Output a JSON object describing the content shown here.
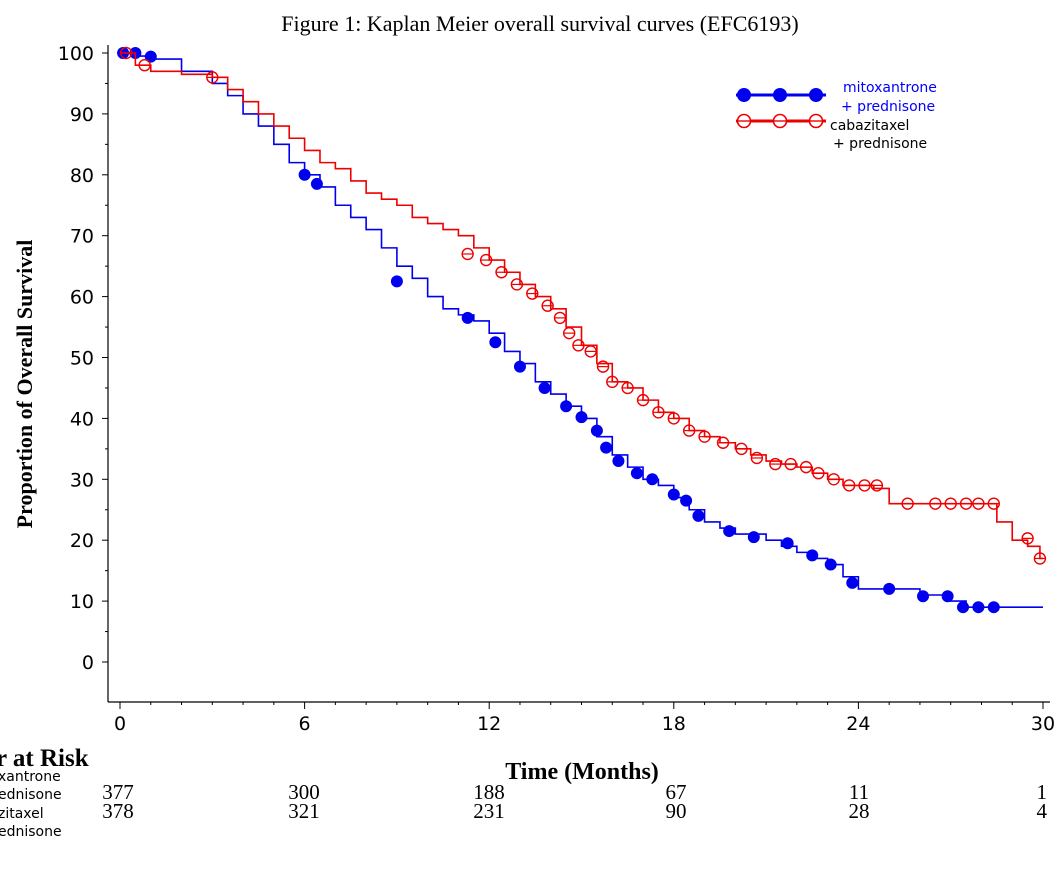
{
  "chart_data": {
    "type": "line",
    "title": "Figure 1: Kaplan Meier overall survival curves (EFC6193)",
    "xlabel": "Time (Months)",
    "ylabel": "Proportion of Overall Survival",
    "xlim": [
      0,
      30
    ],
    "ylim": [
      0,
      100
    ],
    "x_ticks": [
      0,
      6,
      12,
      18,
      24,
      30
    ],
    "y_ticks": [
      0,
      10,
      20,
      30,
      40,
      50,
      60,
      70,
      80,
      90,
      100
    ],
    "grid": false,
    "legend_position": "top-right",
    "series": [
      {
        "name_lines": [
          "mitoxantrone",
          "+ prednisone"
        ],
        "label_color": "#0000ff",
        "color": "#0000ee",
        "marker": "filled-circle",
        "steps": [
          [
            0,
            100
          ],
          [
            0.5,
            99.5
          ],
          [
            1,
            99
          ],
          [
            2,
            97
          ],
          [
            3,
            95
          ],
          [
            3.5,
            93
          ],
          [
            4,
            90
          ],
          [
            4.5,
            88
          ],
          [
            5,
            85
          ],
          [
            5.5,
            82
          ],
          [
            6,
            80
          ],
          [
            6.5,
            78
          ],
          [
            7,
            75
          ],
          [
            7.5,
            73
          ],
          [
            8,
            71
          ],
          [
            8.5,
            68
          ],
          [
            9,
            65
          ],
          [
            9.5,
            63
          ],
          [
            10,
            60
          ],
          [
            10.5,
            58
          ],
          [
            11,
            57
          ],
          [
            11.5,
            56
          ],
          [
            12,
            54
          ],
          [
            12.5,
            51
          ],
          [
            13,
            49
          ],
          [
            13.5,
            46
          ],
          [
            14,
            44
          ],
          [
            14.5,
            42
          ],
          [
            15,
            40
          ],
          [
            15.5,
            37
          ],
          [
            16,
            34
          ],
          [
            16.5,
            32
          ],
          [
            17,
            30
          ],
          [
            17.5,
            29
          ],
          [
            18,
            27
          ],
          [
            18.5,
            25
          ],
          [
            19,
            23
          ],
          [
            19.5,
            22
          ],
          [
            20,
            21
          ],
          [
            20.5,
            21
          ],
          [
            21,
            20
          ],
          [
            21.5,
            19
          ],
          [
            22,
            18
          ],
          [
            22.5,
            17
          ],
          [
            23,
            16
          ],
          [
            23.5,
            14
          ],
          [
            24,
            12
          ],
          [
            25,
            12
          ],
          [
            26,
            11
          ],
          [
            27,
            10
          ],
          [
            27.5,
            9
          ],
          [
            28.5,
            9
          ],
          [
            30,
            9
          ]
        ],
        "censor_points": [
          [
            0.1,
            100
          ],
          [
            0.5,
            100
          ],
          [
            1,
            99.4
          ],
          [
            6,
            80
          ],
          [
            6.4,
            78.5
          ],
          [
            9,
            62.5
          ],
          [
            11.3,
            56.5
          ],
          [
            12.2,
            52.5
          ],
          [
            13,
            48.5
          ],
          [
            13.8,
            45
          ],
          [
            14.5,
            42
          ],
          [
            15,
            40.2
          ],
          [
            15.5,
            38
          ],
          [
            15.8,
            35.2
          ],
          [
            16.2,
            33
          ],
          [
            16.8,
            31
          ],
          [
            17.3,
            30
          ],
          [
            18,
            27.5
          ],
          [
            18.4,
            26.5
          ],
          [
            18.8,
            24
          ],
          [
            19.8,
            21.5
          ],
          [
            20.6,
            20.5
          ],
          [
            21.7,
            19.5
          ],
          [
            22.5,
            17.5
          ],
          [
            23.1,
            16
          ],
          [
            23.8,
            13
          ],
          [
            25,
            12
          ],
          [
            26.1,
            10.8
          ],
          [
            26.9,
            10.8
          ],
          [
            27.4,
            9
          ],
          [
            27.9,
            9
          ],
          [
            28.4,
            9
          ]
        ]
      },
      {
        "name_lines": [
          "cabazitaxel",
          "+ prednisone"
        ],
        "label_color": "#000000",
        "color": "#ee0000",
        "marker": "open-circle",
        "steps": [
          [
            0,
            100
          ],
          [
            0.5,
            98
          ],
          [
            1,
            97
          ],
          [
            2,
            96.5
          ],
          [
            3,
            96
          ],
          [
            3.5,
            94
          ],
          [
            4,
            92
          ],
          [
            4.5,
            90
          ],
          [
            5,
            88
          ],
          [
            5.5,
            86
          ],
          [
            6,
            84
          ],
          [
            6.5,
            82
          ],
          [
            7,
            81
          ],
          [
            7.5,
            79
          ],
          [
            8,
            77
          ],
          [
            8.5,
            76
          ],
          [
            9,
            75
          ],
          [
            9.5,
            73
          ],
          [
            10,
            72
          ],
          [
            10.5,
            71
          ],
          [
            11,
            70
          ],
          [
            11.5,
            68
          ],
          [
            12,
            66
          ],
          [
            12.5,
            64
          ],
          [
            13,
            62
          ],
          [
            13.5,
            60
          ],
          [
            14,
            58
          ],
          [
            14.5,
            55
          ],
          [
            15,
            52
          ],
          [
            15.5,
            49
          ],
          [
            16,
            46
          ],
          [
            16.5,
            45
          ],
          [
            17,
            43
          ],
          [
            17.5,
            41
          ],
          [
            18,
            40
          ],
          [
            18.5,
            38
          ],
          [
            19,
            37
          ],
          [
            19.5,
            36
          ],
          [
            20,
            35
          ],
          [
            20.5,
            34
          ],
          [
            21,
            33
          ],
          [
            21.5,
            32.5
          ],
          [
            22,
            32
          ],
          [
            22.5,
            31
          ],
          [
            23,
            30
          ],
          [
            23.5,
            29
          ],
          [
            24,
            29
          ],
          [
            24.5,
            28.5
          ],
          [
            25,
            26
          ],
          [
            26,
            26
          ],
          [
            27,
            26
          ],
          [
            28,
            26
          ],
          [
            28.5,
            23
          ],
          [
            29,
            20
          ],
          [
            29.5,
            19
          ],
          [
            29.9,
            17
          ],
          [
            30,
            17
          ]
        ],
        "censor_points": [
          [
            0.2,
            100
          ],
          [
            0.8,
            98
          ],
          [
            3,
            96
          ],
          [
            11.3,
            67
          ],
          [
            11.9,
            66
          ],
          [
            12.4,
            64
          ],
          [
            12.9,
            62
          ],
          [
            13.4,
            60.5
          ],
          [
            13.9,
            58.5
          ],
          [
            14.3,
            56.5
          ],
          [
            14.6,
            54
          ],
          [
            14.9,
            52
          ],
          [
            15.3,
            51
          ],
          [
            15.7,
            48.5
          ],
          [
            16,
            46
          ],
          [
            16.5,
            45
          ],
          [
            17,
            43
          ],
          [
            17.5,
            41
          ],
          [
            18,
            40
          ],
          [
            18.5,
            38
          ],
          [
            19,
            37
          ],
          [
            19.6,
            36
          ],
          [
            20.2,
            35
          ],
          [
            20.7,
            33.5
          ],
          [
            21.3,
            32.5
          ],
          [
            21.8,
            32.5
          ],
          [
            22.3,
            32
          ],
          [
            22.7,
            31
          ],
          [
            23.2,
            30
          ],
          [
            23.7,
            29
          ],
          [
            24.2,
            29
          ],
          [
            24.6,
            29
          ],
          [
            25.6,
            26
          ],
          [
            26.5,
            26
          ],
          [
            27,
            26
          ],
          [
            27.5,
            26
          ],
          [
            27.9,
            26
          ],
          [
            28.4,
            26
          ],
          [
            29.5,
            20.3
          ],
          [
            29.9,
            17
          ]
        ]
      }
    ],
    "risk_table": {
      "title": "r at Risk",
      "rows": [
        {
          "label_lines": [
            "xantrone",
            "ednisone"
          ],
          "values": [
            377,
            300,
            188,
            67,
            11,
            1
          ]
        },
        {
          "label_lines": [
            "zitaxel",
            "ednisone"
          ],
          "values": [
            378,
            321,
            231,
            90,
            28,
            4
          ]
        }
      ]
    }
  }
}
